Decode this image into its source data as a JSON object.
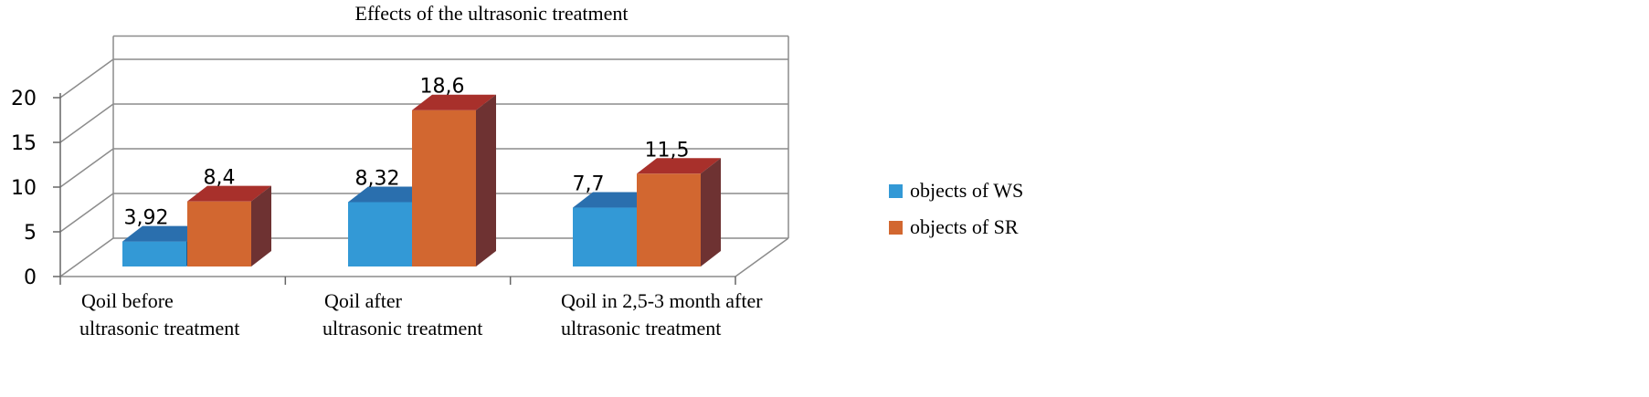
{
  "chart_data": {
    "type": "bar",
    "title": "Effects of the ultrasonic treatment",
    "xlabel": "",
    "ylabel": "",
    "ylim": [
      0,
      20
    ],
    "yticks": [
      "0",
      "5",
      "10",
      "15",
      "20"
    ],
    "categories": [
      [
        "Qoil before",
        "ultrasonic treatment"
      ],
      [
        "Qoil after",
        "ultrasonic treatment"
      ],
      [
        "Qoil in 2,5-3 month after",
        "ultrasonic treatment"
      ]
    ],
    "series": [
      {
        "name": "objects of WS",
        "values": [
          3.92,
          8.32,
          7.7
        ],
        "labels": [
          "3,92",
          "8,32",
          "7,7"
        ]
      },
      {
        "name": "objects of SR",
        "values": [
          8.4,
          18.6,
          11.5
        ],
        "labels": [
          "8,4",
          "18,6",
          "11,5"
        ]
      }
    ],
    "grid": true,
    "legend_position": "right",
    "colors": {
      "ws_front": "#3399D6",
      "ws_top": "#2A6FAE",
      "ws_side": "#1F5C8F",
      "sr_front": "#D26730",
      "sr_top": "#A8302B",
      "sr_side": "#6E3232",
      "grid": "#8c8c8c"
    }
  }
}
